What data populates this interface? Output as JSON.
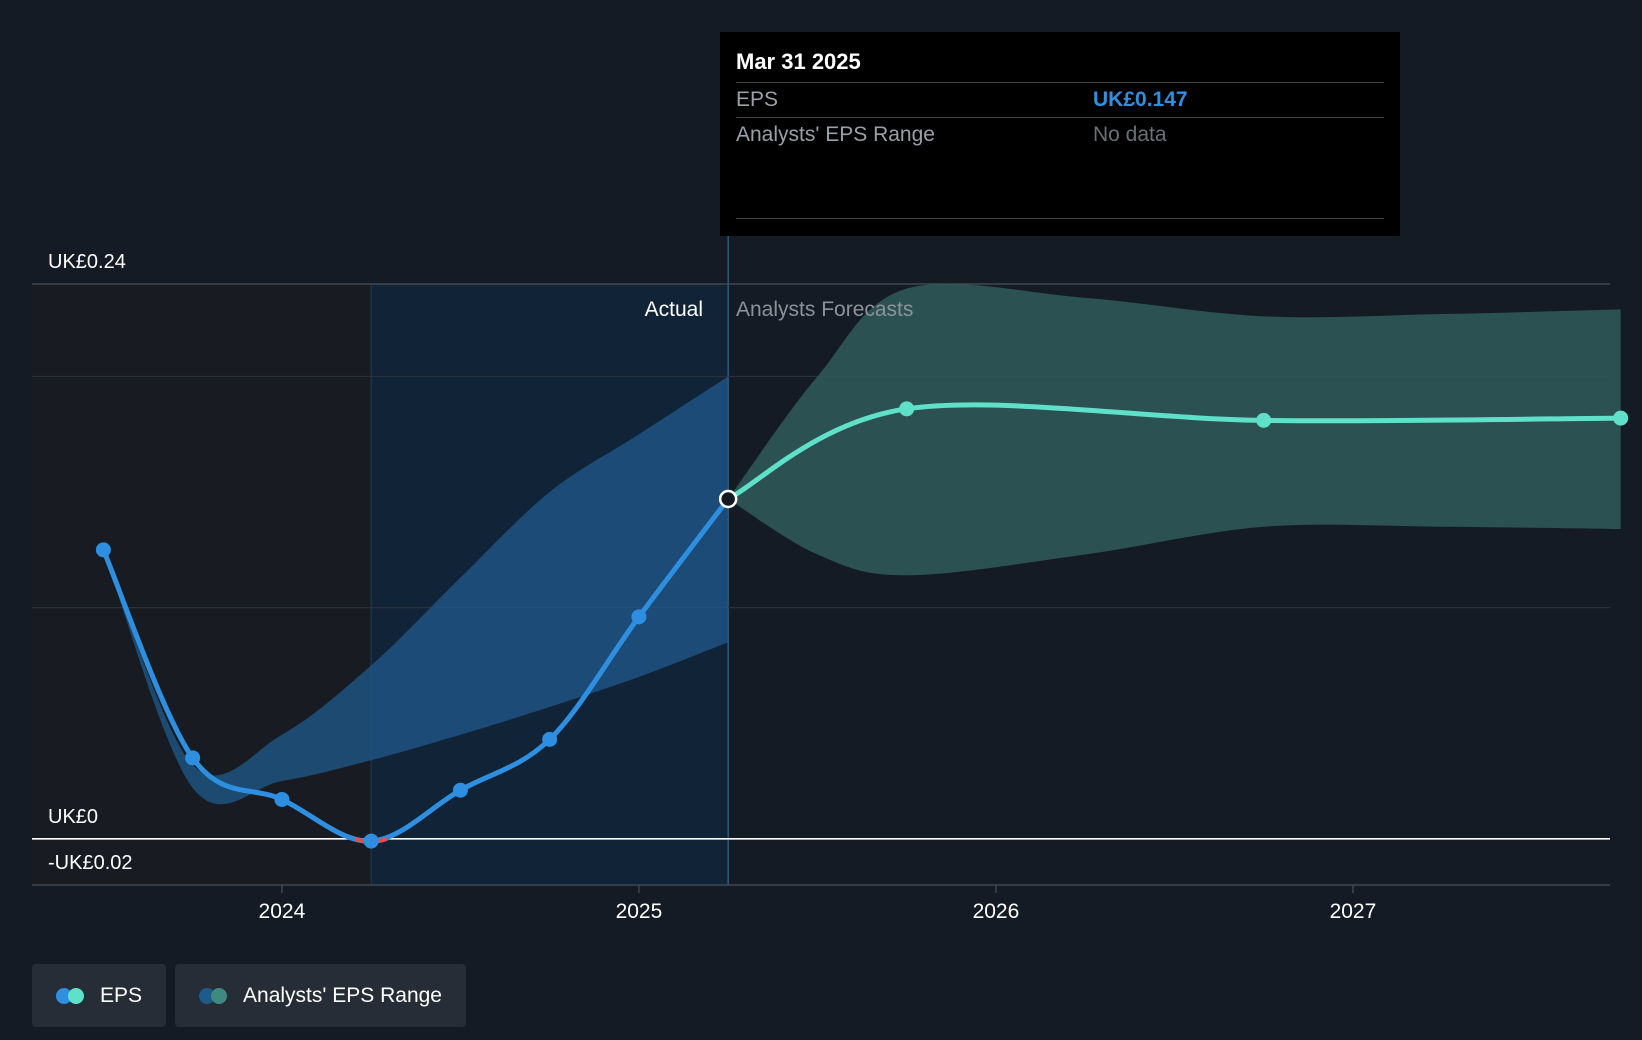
{
  "tooltip": {
    "date": "Mar 31 2025",
    "rows": [
      {
        "label": "EPS",
        "value": "UK£0.147"
      },
      {
        "label": "Analysts' EPS Range",
        "value": "No data"
      }
    ]
  },
  "labels": {
    "actual": "Actual",
    "forecast": "Analysts Forecasts"
  },
  "legend": {
    "items": [
      {
        "label": "EPS"
      },
      {
        "label": "Analysts' EPS Range"
      }
    ]
  },
  "colors": {
    "background": "#151b24",
    "eps_actual": "#2e8fe0",
    "eps_forecast": "#5fe0c8",
    "range_actual": "#1f5a8c",
    "range_forecast": "#2f5a5a",
    "negative": "#e05050"
  },
  "chart_data": {
    "type": "line",
    "ylim": [
      -0.02,
      0.24
    ],
    "y_tick_labels": [
      {
        "value": 0.24,
        "label": "UK£0.24"
      },
      {
        "value": 0,
        "label": "UK£0"
      },
      {
        "value": -0.02,
        "label": "-UK£0.02"
      }
    ],
    "x_tick_labels": [
      {
        "value": 2024.0,
        "label": "2024"
      },
      {
        "value": 2025.0,
        "label": "2025"
      },
      {
        "value": 2026.0,
        "label": "2026"
      },
      {
        "value": 2027.0,
        "label": "2027"
      }
    ],
    "xlim": [
      2023.3,
      2027.72
    ],
    "actual_until": 2025.25,
    "shaded_from": 2024.25,
    "series": [
      {
        "name": "EPS",
        "kind": "actual",
        "points": [
          {
            "x": 2023.5,
            "y": 0.125
          },
          {
            "x": 2023.75,
            "y": 0.035
          },
          {
            "x": 2024.0,
            "y": 0.017
          },
          {
            "x": 2024.25,
            "y": -0.001
          },
          {
            "x": 2024.5,
            "y": 0.021
          },
          {
            "x": 2024.75,
            "y": 0.043
          },
          {
            "x": 2025.0,
            "y": 0.096
          },
          {
            "x": 2025.25,
            "y": 0.147
          }
        ]
      },
      {
        "name": "EPS",
        "kind": "forecast",
        "points": [
          {
            "x": 2025.25,
            "y": 0.147
          },
          {
            "x": 2025.75,
            "y": 0.186
          },
          {
            "x": 2026.75,
            "y": 0.181
          },
          {
            "x": 2027.75,
            "y": 0.182
          }
        ]
      }
    ],
    "range_actual": {
      "upper": [
        {
          "x": 2023.5,
          "y": 0.125
        },
        {
          "x": 2023.75,
          "y": 0.032
        },
        {
          "x": 2024.0,
          "y": 0.045
        },
        {
          "x": 2024.25,
          "y": 0.075
        },
        {
          "x": 2024.5,
          "y": 0.113
        },
        {
          "x": 2024.75,
          "y": 0.15
        },
        {
          "x": 2025.0,
          "y": 0.175
        },
        {
          "x": 2025.25,
          "y": 0.2
        }
      ],
      "lower": [
        {
          "x": 2023.5,
          "y": 0.125
        },
        {
          "x": 2023.75,
          "y": 0.022
        },
        {
          "x": 2024.0,
          "y": 0.025
        },
        {
          "x": 2024.25,
          "y": 0.034
        },
        {
          "x": 2024.5,
          "y": 0.045
        },
        {
          "x": 2024.75,
          "y": 0.057
        },
        {
          "x": 2025.0,
          "y": 0.07
        },
        {
          "x": 2025.25,
          "y": 0.085
        }
      ]
    },
    "range_forecast": {
      "upper": [
        {
          "x": 2025.25,
          "y": 0.147
        },
        {
          "x": 2025.5,
          "y": 0.2
        },
        {
          "x": 2025.75,
          "y": 0.238
        },
        {
          "x": 2026.25,
          "y": 0.234
        },
        {
          "x": 2026.75,
          "y": 0.226
        },
        {
          "x": 2027.25,
          "y": 0.227
        },
        {
          "x": 2027.75,
          "y": 0.229
        }
      ],
      "lower": [
        {
          "x": 2025.25,
          "y": 0.147
        },
        {
          "x": 2025.5,
          "y": 0.123
        },
        {
          "x": 2025.75,
          "y": 0.114
        },
        {
          "x": 2026.25,
          "y": 0.123
        },
        {
          "x": 2026.75,
          "y": 0.135
        },
        {
          "x": 2027.25,
          "y": 0.135
        },
        {
          "x": 2027.75,
          "y": 0.134
        }
      ]
    }
  }
}
